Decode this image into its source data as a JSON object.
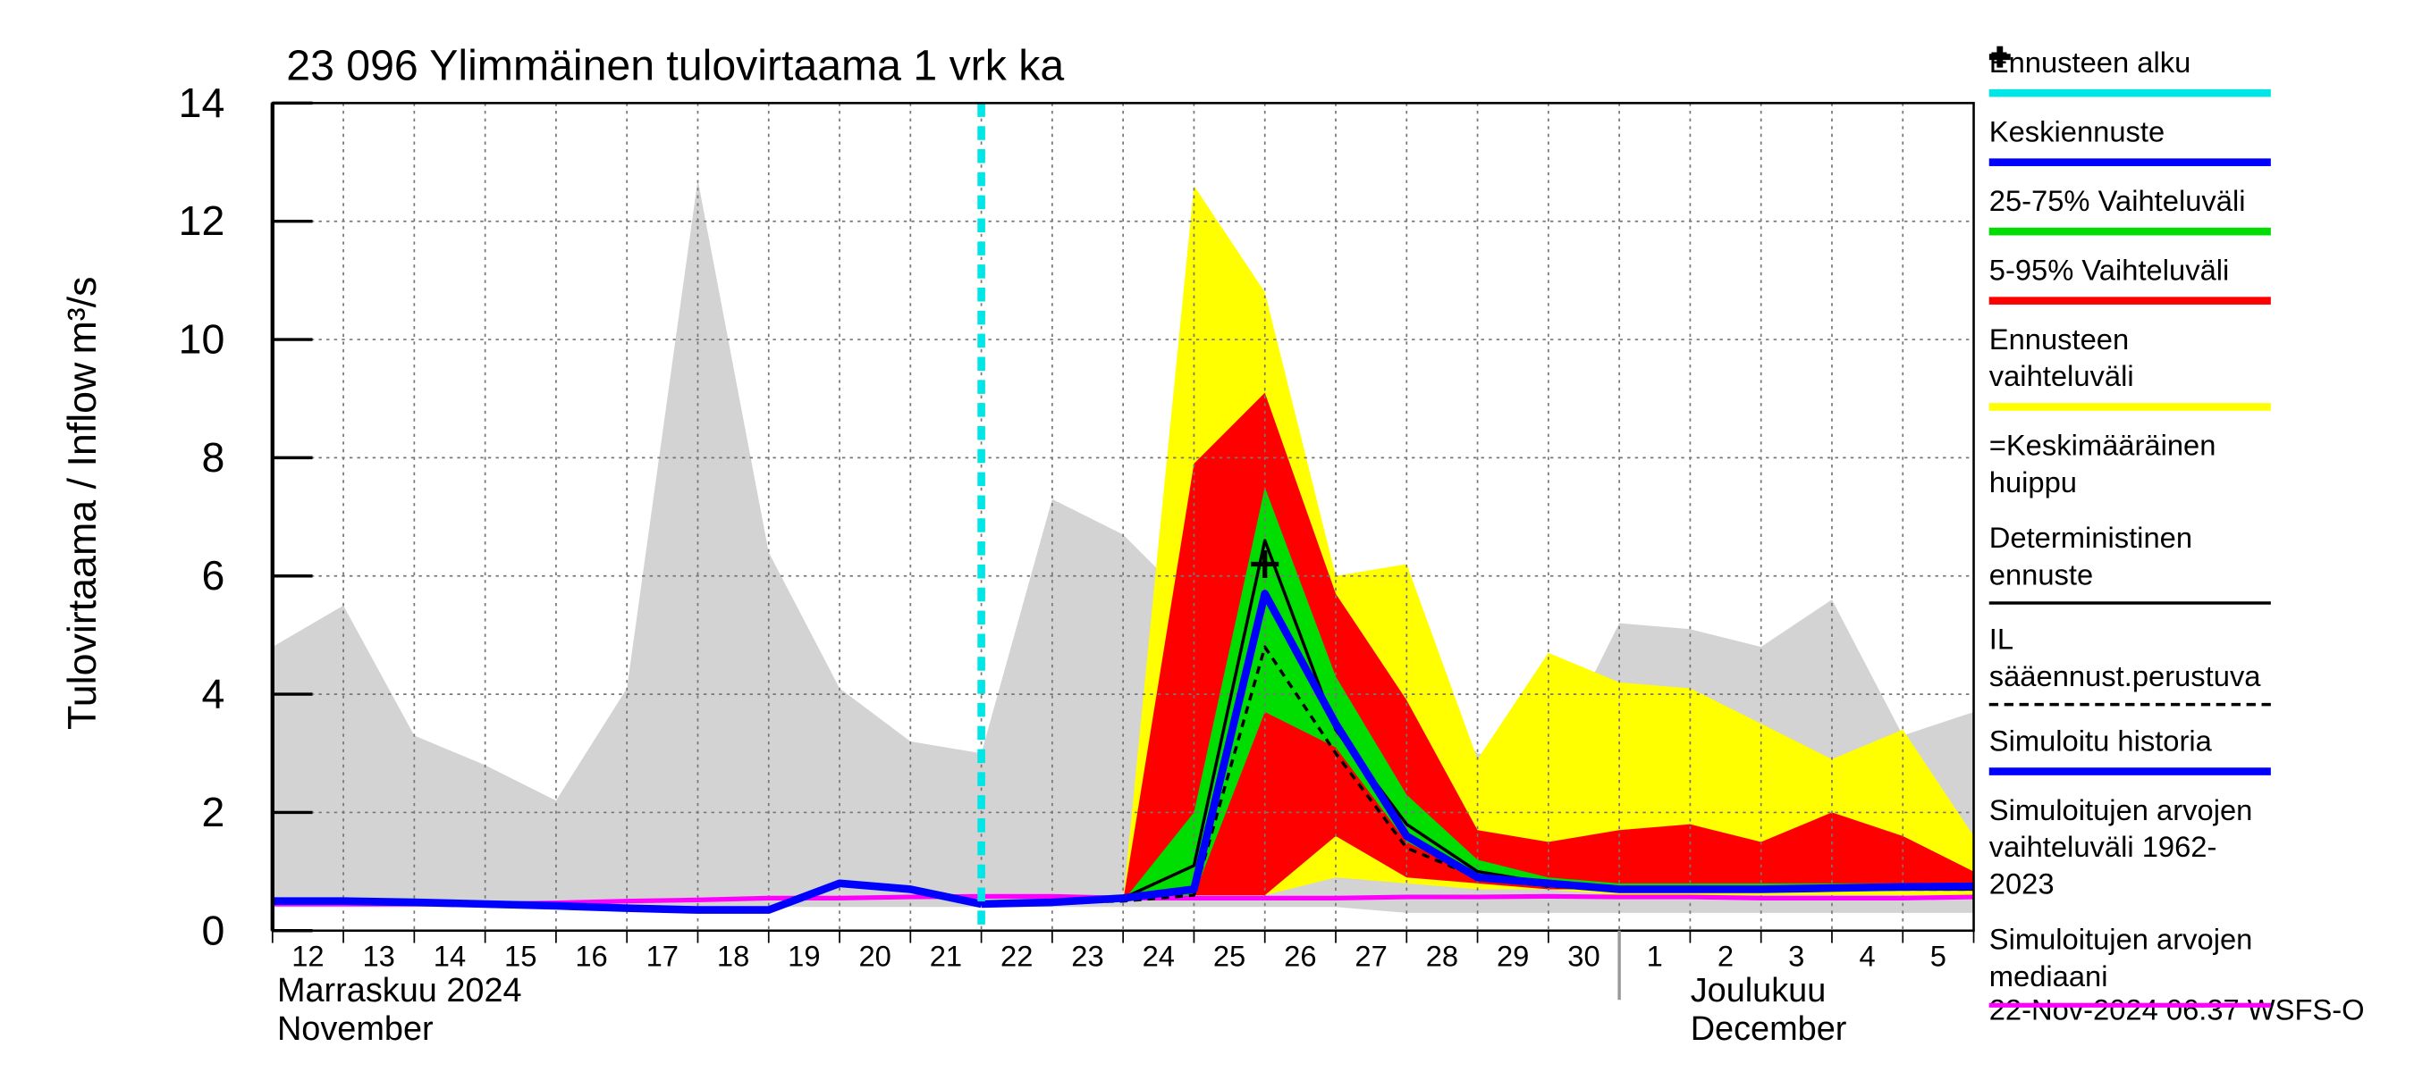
{
  "chart_data": {
    "type": "forecast",
    "title": "23 096 Ylimmäinen tulovirtaama 1 vrk ka",
    "y_label": "Tulovirtaama / Inflow",
    "y_unit": "m³/s",
    "categories": [
      "12",
      "13",
      "14",
      "15",
      "16",
      "17",
      "18",
      "19",
      "20",
      "21",
      "22",
      "23",
      "24",
      "25",
      "26",
      "27",
      "28",
      "29",
      "30",
      "1",
      "2",
      "3",
      "4",
      "5",
      null
    ],
    "months": [
      {
        "label": "Marraskuu 2024",
        "label_en": "November"
      },
      {
        "label": "Joulukuu",
        "label_en": "December"
      }
    ],
    "ylim": [
      0,
      14
    ],
    "yticks": [
      0,
      2,
      4,
      6,
      8,
      10,
      12,
      14
    ],
    "grid": true,
    "forecast_start": {
      "name": "Ennusteen alku",
      "x": 10,
      "color": "#00e5e5"
    },
    "series": [
      {
        "name": "Keskiennuste",
        "kind": "line",
        "color": "#0000ff",
        "width": 5,
        "values": [
          null,
          null,
          null,
          null,
          null,
          null,
          null,
          null,
          null,
          null,
          0.45,
          0.48,
          0.55,
          0.7,
          5.7,
          3.5,
          1.6,
          0.9,
          0.8,
          0.7,
          0.7,
          0.7,
          0.72,
          0.74,
          0.75
        ]
      },
      {
        "name": "25-75% Vaihteluväli",
        "kind": "band",
        "color": "#00dd00",
        "upper": [
          null,
          null,
          null,
          null,
          null,
          null,
          null,
          null,
          null,
          null,
          null,
          null,
          0.5,
          2.0,
          7.5,
          4.3,
          2.3,
          1.2,
          0.9,
          0.8,
          0.8,
          0.8,
          0.8,
          0.8,
          0.8
        ],
        "lower": [
          null,
          null,
          null,
          null,
          null,
          null,
          null,
          null,
          null,
          null,
          null,
          null,
          0.5,
          0.6,
          3.7,
          3.1,
          1.5,
          0.9,
          0.8,
          0.7,
          0.7,
          0.7,
          0.7,
          0.7,
          0.7
        ]
      },
      {
        "name": "5-95% Vaihteluväli",
        "kind": "band",
        "color": "#ff0000",
        "upper": [
          null,
          null,
          null,
          null,
          null,
          null,
          null,
          null,
          null,
          null,
          null,
          null,
          0.5,
          7.9,
          9.1,
          5.7,
          3.9,
          1.7,
          1.5,
          1.7,
          1.8,
          1.5,
          2.0,
          1.6,
          1.0
        ],
        "lower": [
          null,
          null,
          null,
          null,
          null,
          null,
          null,
          null,
          null,
          null,
          null,
          null,
          0.5,
          0.6,
          0.6,
          1.6,
          0.9,
          0.8,
          0.7,
          0.7,
          0.7,
          0.7,
          0.7,
          0.7,
          0.7
        ]
      },
      {
        "name": "Ennusteen vaihteluväli",
        "kind": "band",
        "color": "#ffff00",
        "upper": [
          null,
          null,
          null,
          null,
          null,
          null,
          null,
          null,
          null,
          null,
          null,
          null,
          0.5,
          12.6,
          10.8,
          6.0,
          6.2,
          2.9,
          4.7,
          4.2,
          4.1,
          3.5,
          2.9,
          3.4,
          1.6
        ],
        "lower": [
          null,
          null,
          null,
          null,
          null,
          null,
          null,
          null,
          null,
          null,
          null,
          null,
          0.5,
          0.6,
          0.6,
          0.9,
          0.8,
          0.7,
          0.7,
          0.6,
          0.6,
          0.6,
          0.6,
          0.6,
          0.6
        ]
      },
      {
        "name": "=Keskimääräinen huippu",
        "kind": "peak",
        "color": "#000000",
        "x": 14,
        "y": 6.2
      },
      {
        "name": "Deterministinen ennuste",
        "kind": "line",
        "color": "#000000",
        "width": 2,
        "values": [
          null,
          null,
          null,
          null,
          null,
          null,
          null,
          null,
          null,
          null,
          0.45,
          0.48,
          0.55,
          1.1,
          6.6,
          3.4,
          1.8,
          1.0,
          0.8,
          0.7,
          0.7,
          0.7,
          0.7,
          0.7,
          0.7
        ]
      },
      {
        "name": "IL sääennust.perustuva",
        "kind": "line",
        "color": "#000000",
        "width": 2,
        "dash": true,
        "values": [
          null,
          null,
          null,
          null,
          null,
          null,
          null,
          null,
          null,
          null,
          0.45,
          0.48,
          0.5,
          0.6,
          4.8,
          3.0,
          1.4,
          0.9,
          0.75,
          0.7,
          0.7,
          0.7,
          0.7,
          0.7,
          0.7
        ]
      },
      {
        "name": "Simuloitu historia",
        "kind": "line",
        "color": "#0000ff",
        "width": 5,
        "values": [
          0.5,
          0.5,
          0.48,
          0.45,
          0.42,
          0.38,
          0.35,
          0.35,
          0.8,
          0.7,
          0.45,
          null,
          null,
          null,
          null,
          null,
          null,
          null,
          null,
          null,
          null,
          null,
          null,
          null,
          null
        ]
      },
      {
        "name": "Simuloitujen arvojen vaihteluväli 1962-2023",
        "kind": "band",
        "color": "#d3d3d3",
        "swatch": false,
        "upper": [
          4.8,
          5.5,
          3.3,
          2.8,
          2.2,
          4.1,
          12.7,
          6.4,
          4.1,
          3.2,
          3.0,
          7.3,
          6.7,
          5.5,
          5.0,
          4.5,
          4.0,
          3.0,
          2.8,
          5.2,
          5.1,
          4.8,
          5.6,
          3.3,
          3.7
        ],
        "lower": [
          0.4,
          0.4,
          0.4,
          0.4,
          0.4,
          0.4,
          0.4,
          0.4,
          0.4,
          0.4,
          0.4,
          0.4,
          0.4,
          0.4,
          0.4,
          0.4,
          0.3,
          0.3,
          0.3,
          0.3,
          0.3,
          0.3,
          0.3,
          0.3,
          0.3
        ]
      },
      {
        "name": "Simuloitujen arvojen mediaani",
        "kind": "line",
        "color": "#ff00ff",
        "width": 3,
        "values": [
          0.45,
          0.45,
          0.45,
          0.45,
          0.47,
          0.5,
          0.52,
          0.55,
          0.55,
          0.57,
          0.58,
          0.58,
          0.55,
          0.55,
          0.55,
          0.55,
          0.57,
          0.57,
          0.58,
          0.57,
          0.57,
          0.55,
          0.55,
          0.55,
          0.57
        ]
      }
    ],
    "footer": "22-Nov-2024 06:37 WSFS-O"
  }
}
